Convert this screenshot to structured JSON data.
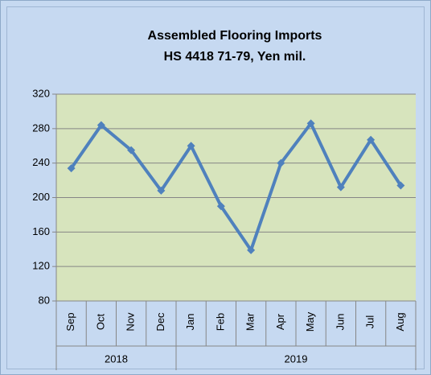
{
  "chart_data": {
    "type": "line",
    "title": "Assembled Flooring Imports",
    "subtitle": "HS 4418 71-79, Yen mil.",
    "category_groups": [
      {
        "label": "2018",
        "categories": [
          "Sep",
          "Oct",
          "Nov",
          "Dec"
        ]
      },
      {
        "label": "2019",
        "categories": [
          "Jan",
          "Feb",
          "Mar",
          "Apr",
          "May",
          "Jun",
          "Jul",
          "Aug"
        ]
      }
    ],
    "values": [
      234,
      284,
      255,
      208,
      260,
      190,
      139,
      240,
      286,
      212,
      267,
      214
    ],
    "color": "#4f81bd",
    "ylim": [
      80,
      320
    ],
    "yticks": [
      80,
      120,
      160,
      200,
      240,
      280,
      320
    ],
    "grid": true
  }
}
